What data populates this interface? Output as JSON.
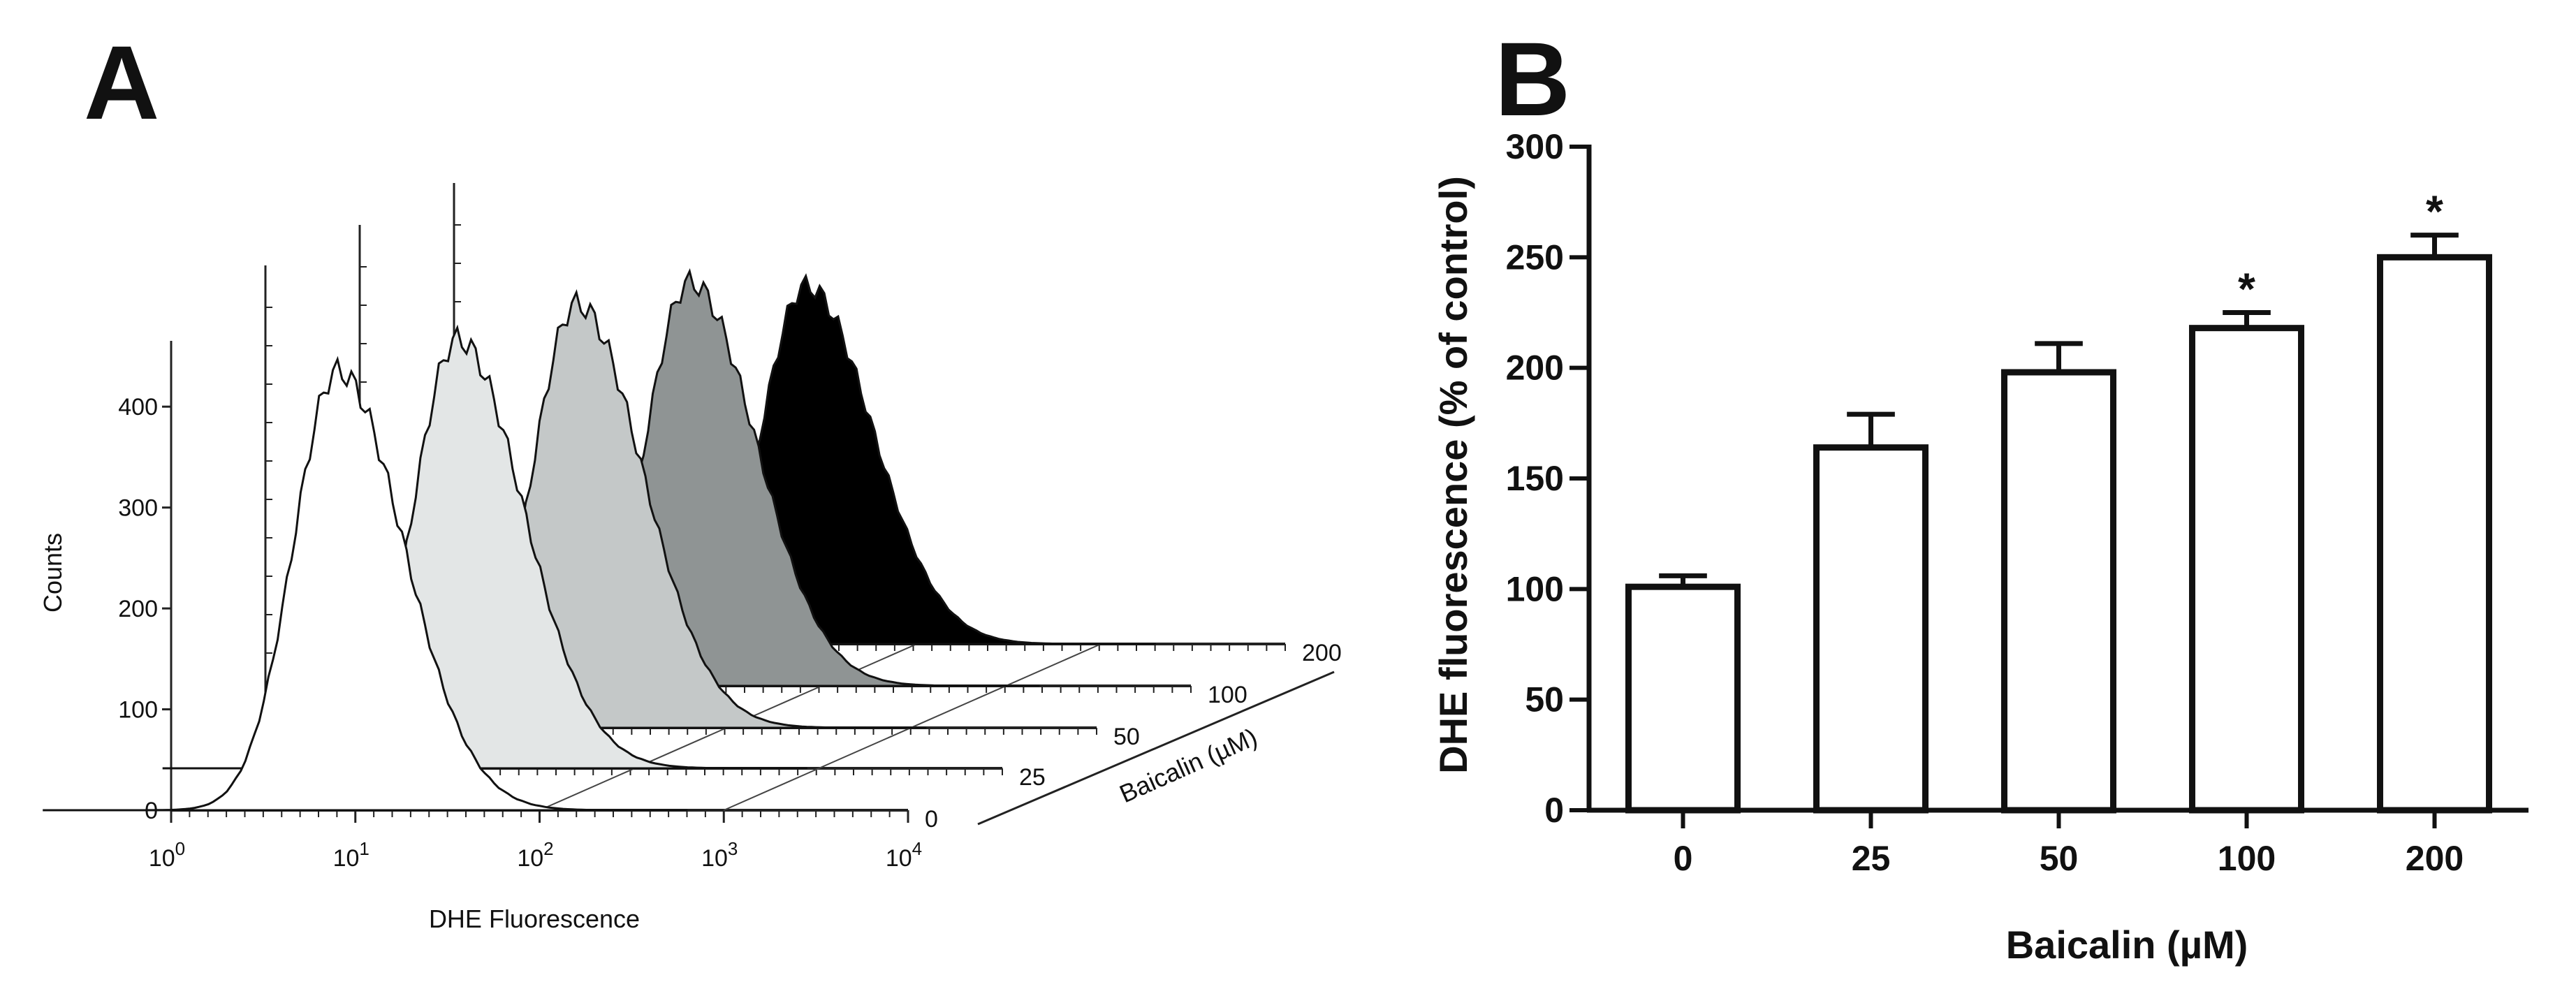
{
  "panel_a": {
    "letter": "A",
    "ylabel": "Counts",
    "xlabel": "DHE Fluorescence",
    "depth_label": "Baicalin (µM)"
  },
  "panel_b": {
    "letter": "B",
    "ylabel": "DHE fluorescence (% of control)",
    "xlabel": "Baicalin (µM)"
  },
  "chart_data": [
    {
      "type": "area",
      "panel": "A",
      "xlabel": "DHE Fluorescence",
      "ylabel": "Counts",
      "x_scale": "log",
      "xlim": [
        1,
        10000
      ],
      "ylim": [
        0,
        450
      ],
      "y_ticks": [
        0,
        100,
        200,
        300,
        400
      ],
      "x_ticks": [
        {
          "value": 1,
          "base": "10",
          "exp": "0"
        },
        {
          "value": 10,
          "base": "10",
          "exp": "1"
        },
        {
          "value": 100,
          "base": "10",
          "exp": "2"
        },
        {
          "value": 1000,
          "base": "10",
          "exp": "3"
        },
        {
          "value": 10000,
          "base": "10",
          "exp": "4"
        }
      ],
      "depth_axis_label": "Baicalin (µM)",
      "series": [
        {
          "name": "0",
          "peak_x": 8,
          "peak_count": 435,
          "fill": "#ffffff"
        },
        {
          "name": "25",
          "peak_x": 11,
          "peak_count": 425,
          "fill": "#e3e6e6"
        },
        {
          "name": "50",
          "peak_x": 15,
          "peak_count": 420,
          "fill": "#c4c8c8"
        },
        {
          "name": "100",
          "peak_x": 19,
          "peak_count": 400,
          "fill": "#8f9494"
        },
        {
          "name": "200",
          "peak_x": 25,
          "peak_count": 355,
          "fill": "#000000"
        }
      ]
    },
    {
      "type": "bar",
      "panel": "B",
      "categories": [
        "0",
        "25",
        "50",
        "100",
        "200"
      ],
      "values": [
        101,
        164,
        198,
        218,
        250
      ],
      "errors": [
        5,
        15,
        13,
        7,
        10
      ],
      "significance": [
        "",
        "",
        "",
        "*",
        "*"
      ],
      "xlabel": "Baicalin (µM)",
      "ylabel": "DHE fluorescence (% of control)",
      "ylim": [
        0,
        300
      ],
      "y_ticks": [
        0,
        50,
        100,
        150,
        200,
        250,
        300
      ]
    }
  ]
}
